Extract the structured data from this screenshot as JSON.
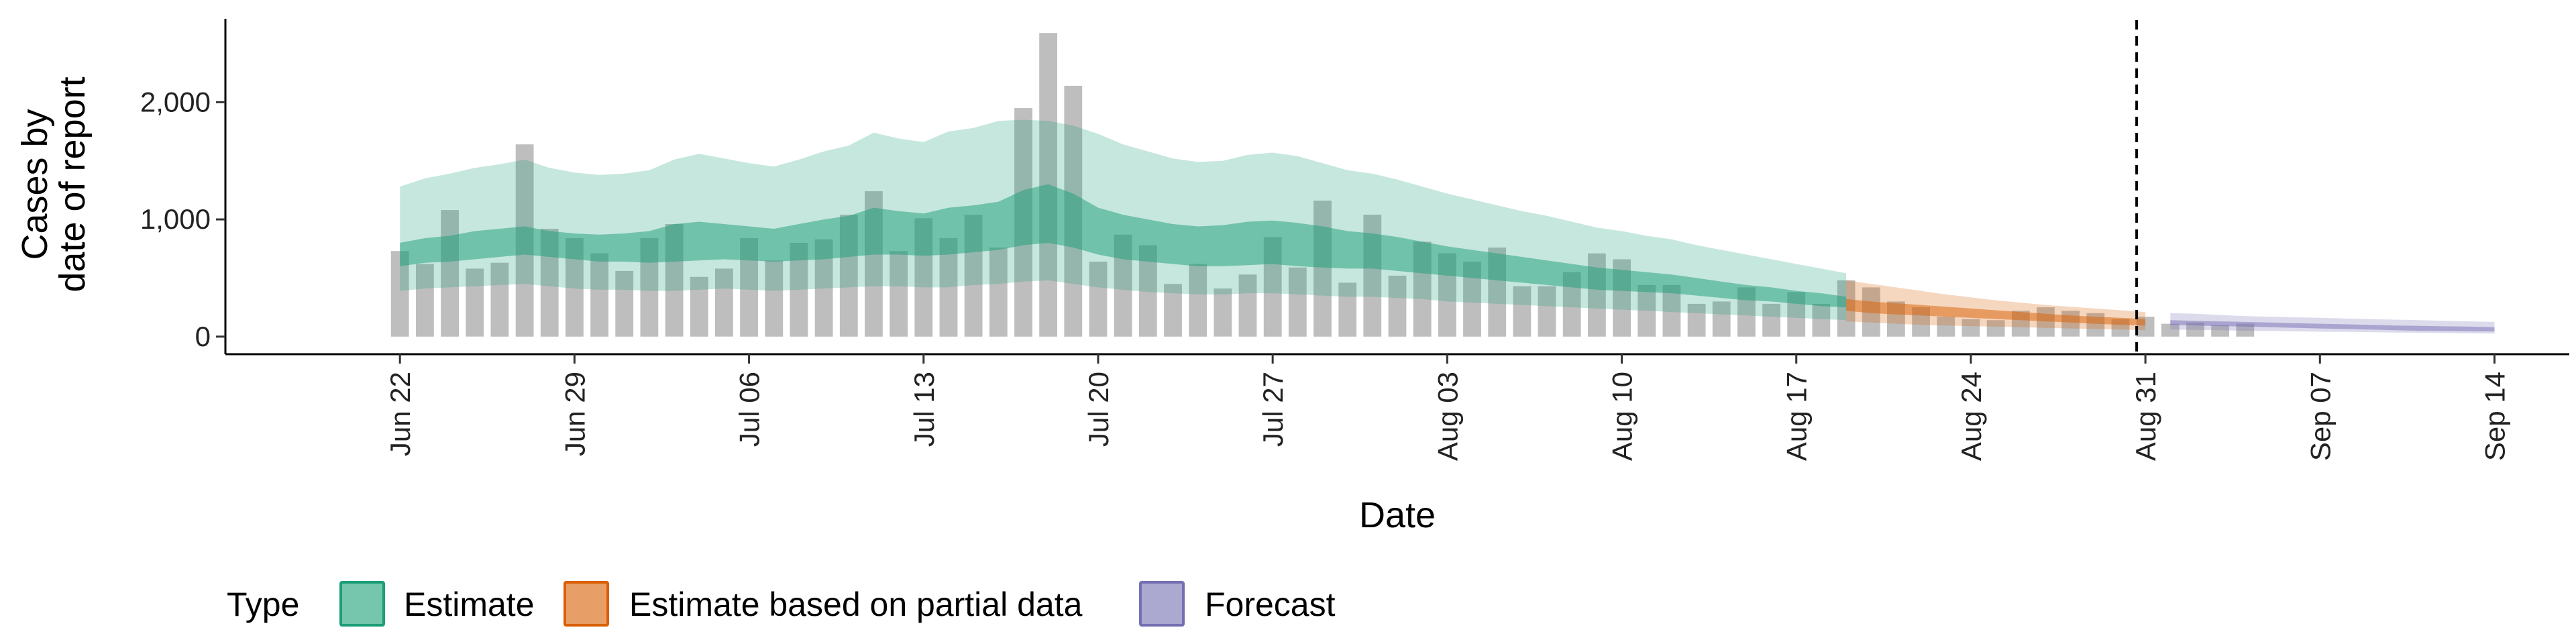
{
  "chart_data": {
    "type": "bar",
    "xlabel": "Date",
    "ylabel_lines": [
      "Cases by",
      "date of report"
    ],
    "ylim": [
      -150,
      2700
    ],
    "y_ticks": [
      0,
      1000,
      2000
    ],
    "y_tick_labels": [
      "0",
      "1,000",
      "2,000"
    ],
    "x_tick_labels": [
      "Jun 22",
      "Jun 29",
      "Jul 06",
      "Jul 13",
      "Jul 20",
      "Jul 27",
      "Aug 03",
      "Aug 10",
      "Aug 17",
      "Aug 24",
      "Aug 31",
      "Sep 07",
      "Sep 14"
    ],
    "x_tick_dates": [
      "2020-06-22",
      "2020-06-29",
      "2020-07-06",
      "2020-07-13",
      "2020-07-20",
      "2020-07-27",
      "2020-08-03",
      "2020-08-10",
      "2020-08-17",
      "2020-08-24",
      "2020-08-31",
      "2020-09-07",
      "2020-09-14"
    ],
    "x_range_dates": [
      "2020-06-15",
      "2020-09-17"
    ],
    "reference_line_date": "2020-08-31",
    "grid": false,
    "legend_position": "bottom",
    "legend_title": "Type",
    "colors": {
      "bars": "#bebebe",
      "estimate": "#1b9e77",
      "partial": "#d95f02",
      "forecast": "#7570b3"
    },
    "reported_cases": {
      "start_date": "2020-06-22",
      "values": [
        730,
        620,
        1080,
        580,
        630,
        1640,
        920,
        840,
        710,
        560,
        840,
        960,
        510,
        580,
        840,
        650,
        800,
        830,
        1040,
        1240,
        730,
        1010,
        840,
        1040,
        760,
        1950,
        2590,
        2140,
        640,
        870,
        780,
        450,
        620,
        410,
        530,
        850,
        590,
        1160,
        460,
        1040,
        520,
        810,
        710,
        640,
        760,
        430,
        430,
        550,
        710,
        660,
        440,
        440,
        280,
        300,
        420,
        280,
        380,
        280,
        480,
        420,
        300,
        250,
        170,
        150,
        140,
        220,
        250,
        220,
        200,
        150,
        170,
        110,
        120,
        100,
        110
      ]
    },
    "series": [
      {
        "name": "Estimate",
        "start_date": "2020-06-22",
        "inner_low": [
          600,
          630,
          640,
          660,
          680,
          700,
          680,
          660,
          640,
          640,
          630,
          640,
          650,
          660,
          650,
          640,
          650,
          660,
          680,
          700,
          700,
          690,
          700,
          720,
          740,
          780,
          800,
          760,
          700,
          660,
          640,
          620,
          600,
          600,
          610,
          620,
          600,
          590,
          580,
          580,
          560,
          540,
          520,
          500,
          480,
          460,
          440,
          420,
          400,
          390,
          380,
          370,
          350,
          330,
          310,
          300,
          280,
          260,
          250
        ],
        "inner_high": [
          800,
          840,
          860,
          900,
          920,
          940,
          900,
          880,
          870,
          880,
          900,
          960,
          980,
          960,
          940,
          920,
          960,
          1000,
          1030,
          1100,
          1070,
          1050,
          1100,
          1120,
          1150,
          1250,
          1300,
          1220,
          1100,
          1040,
          1000,
          960,
          940,
          950,
          980,
          990,
          970,
          940,
          900,
          880,
          850,
          810,
          770,
          740,
          710,
          680,
          650,
          620,
          590,
          570,
          550,
          530,
          500,
          470,
          440,
          420,
          390,
          370,
          340
        ],
        "outer_low": [
          390,
          410,
          420,
          430,
          440,
          450,
          430,
          410,
          400,
          400,
          390,
          390,
          400,
          410,
          400,
          390,
          400,
          410,
          420,
          430,
          430,
          420,
          420,
          440,
          450,
          470,
          480,
          450,
          420,
          400,
          380,
          370,
          360,
          360,
          370,
          370,
          360,
          350,
          340,
          340,
          330,
          320,
          300,
          290,
          280,
          270,
          260,
          250,
          240,
          230,
          220,
          210,
          200,
          190,
          180,
          170,
          160,
          150,
          140
        ],
        "outer_high": [
          1280,
          1350,
          1390,
          1440,
          1470,
          1510,
          1440,
          1400,
          1380,
          1390,
          1420,
          1510,
          1560,
          1520,
          1480,
          1450,
          1510,
          1580,
          1630,
          1740,
          1690,
          1660,
          1750,
          1780,
          1840,
          1850,
          1840,
          1800,
          1730,
          1640,
          1580,
          1520,
          1490,
          1500,
          1550,
          1570,
          1540,
          1480,
          1420,
          1390,
          1340,
          1280,
          1220,
          1170,
          1120,
          1070,
          1030,
          980,
          930,
          900,
          860,
          830,
          780,
          740,
          700,
          660,
          620,
          580,
          540
        ]
      },
      {
        "name": "Estimate based on partial data",
        "start_date": "2020-08-19",
        "inner_low": [
          220,
          200,
          190,
          180,
          170,
          160,
          150,
          140,
          130,
          120,
          110,
          100,
          95
        ],
        "inner_high": [
          320,
          300,
          285,
          270,
          255,
          240,
          225,
          210,
          195,
          180,
          170,
          160,
          150
        ],
        "outer_low": [
          130,
          120,
          110,
          100,
          95,
          90,
          85,
          80,
          75,
          70,
          65,
          60,
          55
        ],
        "outer_high": [
          480,
          450,
          420,
          390,
          360,
          335,
          310,
          290,
          270,
          255,
          240,
          225,
          210
        ]
      },
      {
        "name": "Forecast",
        "start_date": "2020-09-01",
        "inner_low": [
          100,
          95,
          90,
          85,
          80,
          75,
          70,
          65,
          60,
          55,
          50,
          48,
          46,
          44
        ],
        "inner_high": [
          140,
          135,
          130,
          125,
          120,
          115,
          110,
          105,
          100,
          95,
          92,
          88,
          85,
          80
        ],
        "outer_low": [
          60,
          58,
          55,
          50,
          48,
          45,
          42,
          40,
          38,
          35,
          33,
          30,
          28,
          26
        ],
        "outer_high": [
          200,
          195,
          185,
          175,
          170,
          165,
          160,
          155,
          150,
          145,
          140,
          135,
          130,
          125
        ]
      }
    ]
  }
}
